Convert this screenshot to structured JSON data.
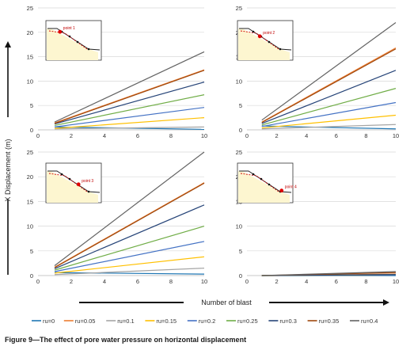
{
  "figure": {
    "caption": "Figure 9—The effect of pore water pressure on horizontal displacement",
    "ylabel": "X Displacement (m)",
    "xlabel": "Number of blast"
  },
  "colors": {
    "ru=0": "#1f77b4",
    "ru=0.05": "#ed7d31",
    "ru=0.1": "#a5a5a5",
    "ru=0.15": "#ffc000",
    "ru=0.2": "#4472c4",
    "ru=0.25": "#70ad47",
    "ru=0.3": "#264478",
    "ru=0.35": "#9e480e",
    "ru=0.4": "#636363"
  },
  "legend": [
    "ru=0",
    "ru=0.05",
    "ru=0.1",
    "ru=0.15",
    "ru=0.2",
    "ru=0.25",
    "ru=0.3",
    "ru=0.35",
    "ru=0.4"
  ],
  "chart_data": [
    {
      "type": "line",
      "panel": "top-left",
      "inset_label": "point 1",
      "x": [
        1,
        10
      ],
      "xlim": [
        0,
        10
      ],
      "ylim": [
        0,
        25
      ],
      "xticks": [
        0,
        2,
        4,
        6,
        8,
        10
      ],
      "yticks": [
        0,
        5,
        10,
        15,
        20,
        25
      ],
      "grid": true,
      "series": [
        {
          "name": "ru=0",
          "values": [
            0.6,
            0.1
          ]
        },
        {
          "name": "ru=0.05",
          "values": [
            1.4,
            12.3
          ]
        },
        {
          "name": "ru=0.1",
          "values": [
            0.2,
            0.6
          ]
        },
        {
          "name": "ru=0.15",
          "values": [
            0.3,
            2.5
          ]
        },
        {
          "name": "ru=0.2",
          "values": [
            0.6,
            4.6
          ]
        },
        {
          "name": "ru=0.25",
          "values": [
            0.9,
            7.2
          ]
        },
        {
          "name": "ru=0.3",
          "values": [
            1.2,
            9.8
          ]
        },
        {
          "name": "ru=0.35",
          "values": [
            1.3,
            12.2
          ]
        },
        {
          "name": "ru=0.4",
          "values": [
            1.6,
            16.0
          ]
        }
      ]
    },
    {
      "type": "line",
      "panel": "top-right",
      "inset_label": "point 2",
      "x": [
        1,
        10
      ],
      "xlim": [
        0,
        10
      ],
      "ylim": [
        0,
        25
      ],
      "xticks": [
        0,
        2,
        4,
        6,
        8,
        10
      ],
      "yticks": [
        0,
        5,
        10,
        15,
        20,
        25
      ],
      "grid": true,
      "series": [
        {
          "name": "ru=0",
          "values": [
            0.8,
            0.2
          ]
        },
        {
          "name": "ru=0.05",
          "values": [
            1.6,
            16.8
          ]
        },
        {
          "name": "ru=0.1",
          "values": [
            0.2,
            1.1
          ]
        },
        {
          "name": "ru=0.15",
          "values": [
            0.4,
            3.0
          ]
        },
        {
          "name": "ru=0.2",
          "values": [
            0.7,
            5.6
          ]
        },
        {
          "name": "ru=0.25",
          "values": [
            1.0,
            8.5
          ]
        },
        {
          "name": "ru=0.3",
          "values": [
            1.3,
            12.2
          ]
        },
        {
          "name": "ru=0.35",
          "values": [
            1.5,
            16.6
          ]
        },
        {
          "name": "ru=0.4",
          "values": [
            2.0,
            22.0
          ]
        }
      ]
    },
    {
      "type": "line",
      "panel": "bottom-left",
      "inset_label": "point 3",
      "x": [
        1,
        10
      ],
      "xlim": [
        0,
        10
      ],
      "ylim": [
        0,
        25
      ],
      "xticks": [
        0,
        2,
        4,
        6,
        8,
        10
      ],
      "yticks": [
        0,
        5,
        10,
        15,
        20,
        25
      ],
      "grid": true,
      "series": [
        {
          "name": "ru=0",
          "values": [
            0.6,
            0.3
          ]
        },
        {
          "name": "ru=0.05",
          "values": [
            1.7,
            18.8
          ]
        },
        {
          "name": "ru=0.1",
          "values": [
            0.2,
            1.5
          ]
        },
        {
          "name": "ru=0.15",
          "values": [
            0.5,
            3.8
          ]
        },
        {
          "name": "ru=0.2",
          "values": [
            0.8,
            6.9
          ]
        },
        {
          "name": "ru=0.25",
          "values": [
            1.1,
            10.0
          ]
        },
        {
          "name": "ru=0.3",
          "values": [
            1.4,
            14.3
          ]
        },
        {
          "name": "ru=0.35",
          "values": [
            1.6,
            18.7
          ]
        },
        {
          "name": "ru=0.4",
          "values": [
            2.0,
            25.0
          ]
        }
      ]
    },
    {
      "type": "line",
      "panel": "bottom-right",
      "inset_label": "point 4",
      "x": [
        1,
        10
      ],
      "xlim": [
        0,
        10
      ],
      "ylim": [
        0,
        25
      ],
      "xticks": [
        0,
        2,
        4,
        6,
        8,
        10
      ],
      "yticks": [
        0,
        5,
        10,
        15,
        20,
        25
      ],
      "grid": true,
      "series": [
        {
          "name": "ru=0",
          "values": [
            0.0,
            0.0
          ]
        },
        {
          "name": "ru=0.05",
          "values": [
            0.0,
            0.3
          ]
        },
        {
          "name": "ru=0.1",
          "values": [
            0.0,
            0.1
          ]
        },
        {
          "name": "ru=0.15",
          "values": [
            0.0,
            0.1
          ]
        },
        {
          "name": "ru=0.2",
          "values": [
            0.0,
            0.1
          ]
        },
        {
          "name": "ru=0.25",
          "values": [
            0.0,
            0.2
          ]
        },
        {
          "name": "ru=0.3",
          "values": [
            0.0,
            0.2
          ]
        },
        {
          "name": "ru=0.35",
          "values": [
            0.0,
            0.6
          ]
        },
        {
          "name": "ru=0.4",
          "values": [
            0.0,
            0.8
          ]
        }
      ]
    }
  ]
}
